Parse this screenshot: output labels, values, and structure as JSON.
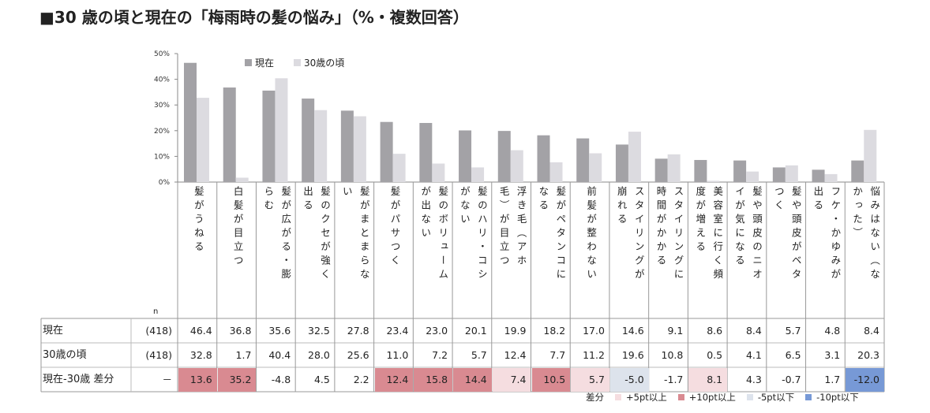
{
  "title": "■30 歳の頃と現在の「梅雨時の髪の悩み」（%・複数回答）",
  "legend": {
    "series1": "現在",
    "series2": "30歳の頃"
  },
  "n_label": "n",
  "table": {
    "row1_label": "現在",
    "row2_label": "30歳の頃",
    "row3_label": "現在-30歳 差分",
    "row1_n": "(418)",
    "row2_n": "(418)",
    "row3_n": "－"
  },
  "diff_legend": {
    "title": "差分",
    "items": [
      "+5pt以上",
      "+10pt以上",
      "-5pt以下",
      "-10pt以下"
    ],
    "colors": [
      "#f5dde0",
      "#d98a91",
      "#dde3ec",
      "#7799d6"
    ]
  },
  "colors": {
    "current": "#a3a2a6",
    "age30": "#dcdbe0"
  },
  "chart_data": {
    "type": "bar",
    "ylim": [
      0,
      50
    ],
    "yticks": [
      "0%",
      "10%",
      "20%",
      "30%",
      "40%",
      "50%"
    ],
    "categories": [
      "髪がうねる",
      "白髪が目立つ",
      "髪が広がる・膨らむ",
      "髪のクセが強く出る",
      "髪がまとまらない",
      "髪がパサつく",
      "髪のボリュームが出ない",
      "髪のハリ・コシがない",
      "浮き毛（アホ毛）が目立つ",
      "髪がペタンコになる",
      "前髪が整わない",
      "スタイリングが崩れる",
      "スタイリングに時間がかかる",
      "美容室に行く頻度が増える",
      "髪や頭皮のニオイが気になる",
      "髪や頭皮がベタつく",
      "フケ・かゆみが出る",
      "悩みはない（なかった）"
    ],
    "cat_lines": [
      [
        "髪がうねる"
      ],
      [
        "白髪が目立つ"
      ],
      [
        "髪が広がる・膨",
        "らむ"
      ],
      [
        "髪のクセが強く",
        "出る"
      ],
      [
        "髪がまとまらな",
        "い"
      ],
      [
        "髪がパサつく"
      ],
      [
        "髪のボリューム",
        "が出ない"
      ],
      [
        "髪のハリ・コシ",
        "がない"
      ],
      [
        "浮き毛（アホ",
        "毛）が目立つ"
      ],
      [
        "髪がペタンコに",
        "なる"
      ],
      [
        "前髪が整わない"
      ],
      [
        "スタイリングが",
        "崩れる"
      ],
      [
        "スタイリングに",
        "時間がかかる"
      ],
      [
        "美容室に行く頻",
        "度が増える"
      ],
      [
        "髪や頭皮のニオ",
        "イが気になる"
      ],
      [
        "髪や頭皮がベタ",
        "つく"
      ],
      [
        "フケ・かゆみが",
        "出る"
      ],
      [
        "悩みはない（な",
        "かった）"
      ]
    ],
    "series": [
      {
        "name": "現在",
        "values": [
          46.4,
          36.8,
          35.6,
          32.5,
          27.8,
          23.4,
          23.0,
          20.1,
          19.9,
          18.2,
          17.0,
          14.6,
          9.1,
          8.6,
          8.4,
          5.7,
          4.8,
          8.4
        ]
      },
      {
        "name": "30歳の頃",
        "values": [
          32.8,
          1.7,
          40.4,
          28.0,
          25.6,
          11.0,
          7.2,
          5.7,
          12.4,
          7.7,
          11.2,
          19.6,
          10.8,
          0.5,
          4.1,
          6.5,
          3.1,
          20.3
        ]
      }
    ],
    "diff": [
      "13.6",
      "35.2",
      "-4.8",
      "4.5",
      "2.2",
      "12.4",
      "15.8",
      "14.4",
      "7.4",
      "10.5",
      "5.7",
      "-5.0",
      "-1.7",
      "8.1",
      "4.3",
      "-0.7",
      "1.7",
      "-12.0"
    ]
  }
}
